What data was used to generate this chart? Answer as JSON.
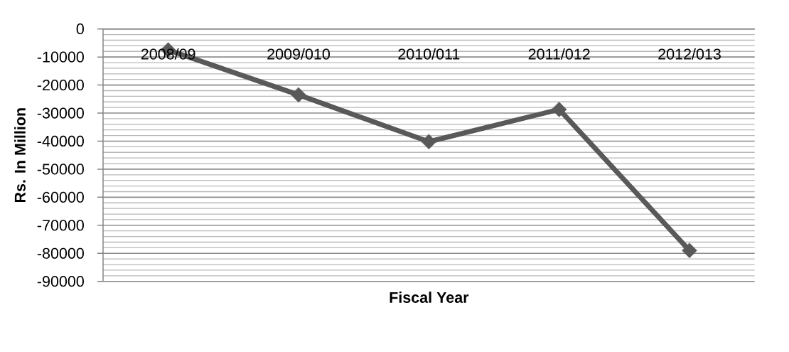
{
  "chart_data": {
    "type": "line",
    "xlabel": "Fiscal Year",
    "ylabel": "Rs. In Million",
    "categories": [
      "2008/09",
      "2009/010",
      "2010/011",
      "2011/012",
      "2012/013"
    ],
    "series": [
      {
        "color": "#595959",
        "values": [
          -7500,
          -23500,
          -40200,
          -28700,
          -79000
        ]
      }
    ],
    "ylim": [
      -90000,
      0
    ],
    "yticks": [
      -90000,
      {
        "value": -88000,
        "label": null
      },
      {
        "value": -86000,
        "label": null
      },
      {
        "value": -84000,
        "label": null
      },
      {
        "value": -82000,
        "label": null
      },
      -80000,
      {
        "value": -78000,
        "label": null
      },
      {
        "value": -76000,
        "label": null
      },
      {
        "value": -74000,
        "label": null
      },
      {
        "value": -72000,
        "label": null
      },
      -70000,
      {
        "value": -68000,
        "label": null
      },
      {
        "value": -66000,
        "label": null
      },
      {
        "value": -64000,
        "label": null
      },
      {
        "value": -62000,
        "label": null
      },
      -60000,
      {
        "value": -58000,
        "label": null
      },
      {
        "value": -56000,
        "label": null
      },
      {
        "value": -54000,
        "label": null
      },
      {
        "value": -52000,
        "label": null
      },
      -50000,
      {
        "value": -48000,
        "label": null
      },
      {
        "value": -46000,
        "label": null
      },
      {
        "value": -44000,
        "label": null
      },
      {
        "value": -42000,
        "label": null
      },
      -40000,
      {
        "value": -38000,
        "label": null
      },
      {
        "value": -36000,
        "label": null
      },
      {
        "value": -34000,
        "label": null
      },
      {
        "value": -32000,
        "label": null
      },
      -30000,
      {
        "value": -28000,
        "label": null
      },
      {
        "value": -26000,
        "label": null
      },
      {
        "value": -24000,
        "label": null
      },
      {
        "value": -22000,
        "label": null
      },
      -20000,
      {
        "value": -18000,
        "label": null
      },
      {
        "value": -16000,
        "label": null
      },
      {
        "value": -14000,
        "label": null
      },
      {
        "value": -12000,
        "label": null
      },
      -10000,
      {
        "value": -8000,
        "label": null
      },
      {
        "value": -6000,
        "label": null
      },
      {
        "value": -4000,
        "label": null
      },
      {
        "value": -2000,
        "label": null
      },
      0
    ],
    "grid": "y",
    "marker": "diamond",
    "line_style": "solid"
  }
}
